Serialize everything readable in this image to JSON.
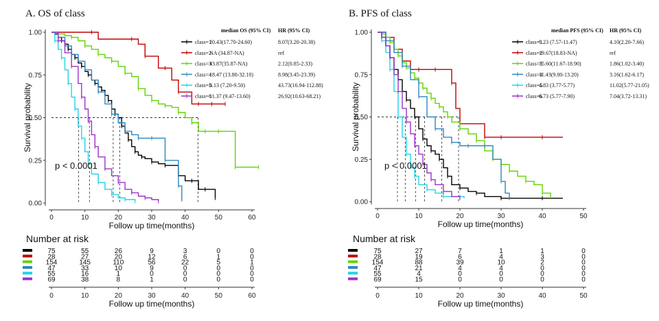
{
  "chart_data": [
    {
      "type": "line",
      "panel_label": "A.",
      "title": "OS of class",
      "xlabel": "Follow up time(months)",
      "ylabel": "Survival probability",
      "xlim": [
        0,
        60
      ],
      "ylim": [
        0,
        1
      ],
      "xticks": [
        0,
        10,
        20,
        30,
        40,
        50,
        60
      ],
      "yticks": [
        "0.00",
        "0.25",
        "0.50",
        "0.75",
        "1.00"
      ],
      "pvalue": "p < 0.0001",
      "legend_header": [
        "median OS (95% CI)",
        "HR (95% CI)"
      ],
      "series": [
        {
          "name": "class=1",
          "color": "#000000",
          "median": "20.43(17.70-24.60)",
          "hr": "8.07(3.20-20.38)",
          "x": [
            0,
            1,
            2,
            3,
            4,
            5,
            6,
            7,
            8,
            9,
            10,
            11,
            12,
            13,
            14,
            15,
            16,
            17,
            18,
            19,
            20,
            21,
            22,
            23,
            24,
            25,
            26,
            27,
            28,
            30,
            32,
            34,
            36,
            38,
            40,
            42,
            44,
            46,
            48,
            49
          ],
          "y": [
            1,
            0.99,
            0.97,
            0.95,
            0.93,
            0.9,
            0.87,
            0.85,
            0.82,
            0.8,
            0.77,
            0.75,
            0.72,
            0.7,
            0.68,
            0.66,
            0.63,
            0.6,
            0.55,
            0.52,
            0.5,
            0.45,
            0.41,
            0.37,
            0.33,
            0.3,
            0.28,
            0.27,
            0.26,
            0.24,
            0.23,
            0.22,
            0.22,
            0.16,
            0.13,
            0.13,
            0.08,
            0.08,
            0.08,
            0.03
          ]
        },
        {
          "name": "class=2",
          "color": "#c00000",
          "median": "NA   (34.87-NA)",
          "hr": "ref",
          "x": [
            0,
            12,
            14,
            24,
            26,
            28,
            32,
            34,
            36,
            38,
            42,
            44,
            46,
            48,
            50,
            52
          ],
          "y": [
            1,
            1,
            0.96,
            0.96,
            0.93,
            0.86,
            0.79,
            0.79,
            0.72,
            0.65,
            0.58,
            0.58,
            0.58,
            0.58,
            0.58,
            0.58
          ]
        },
        {
          "name": "class=3",
          "color": "#5fd400",
          "median": "43.87(35.87-NA)",
          "hr": "2.12(0.85-2.33)",
          "x": [
            0,
            2,
            4,
            6,
            8,
            10,
            12,
            14,
            16,
            18,
            20,
            22,
            24,
            26,
            28,
            30,
            32,
            34,
            36,
            38,
            40,
            42,
            44,
            46,
            48,
            50,
            52,
            55,
            58,
            62
          ],
          "y": [
            1,
            0.99,
            0.98,
            0.97,
            0.95,
            0.92,
            0.9,
            0.87,
            0.85,
            0.83,
            0.8,
            0.76,
            0.74,
            0.67,
            0.63,
            0.6,
            0.58,
            0.57,
            0.56,
            0.53,
            0.5,
            0.47,
            0.42,
            0.42,
            0.42,
            0.42,
            0.42,
            0.21,
            0.21,
            0.21
          ]
        },
        {
          "name": "class=4",
          "color": "#2e86c1",
          "median": "18.47 (13.80-32.10)",
          "hr": "8.98(3.45-23.39)",
          "x": [
            0,
            2,
            4,
            6,
            8,
            10,
            12,
            14,
            16,
            18,
            20,
            22,
            24,
            26,
            28,
            30,
            32,
            34,
            36,
            38,
            39
          ],
          "y": [
            1,
            0.97,
            0.92,
            0.87,
            0.83,
            0.78,
            0.72,
            0.65,
            0.58,
            0.52,
            0.47,
            0.42,
            0.4,
            0.38,
            0.38,
            0.38,
            0.38,
            0.25,
            0.25,
            0.1,
            0.01
          ]
        },
        {
          "name": "class=5",
          "color": "#22d3e6",
          "median": "8.13  (7.20-9.50)",
          "hr": "43.73(16.94-112.88)",
          "x": [
            0,
            1,
            2,
            3,
            4,
            5,
            6,
            7,
            8,
            9,
            10,
            11,
            12,
            14,
            16,
            18,
            20,
            22,
            24,
            25
          ],
          "y": [
            1,
            0.95,
            0.9,
            0.85,
            0.78,
            0.7,
            0.62,
            0.55,
            0.45,
            0.38,
            0.3,
            0.23,
            0.17,
            0.12,
            0.08,
            0.05,
            0.03,
            0.02,
            0.02,
            0.01
          ]
        },
        {
          "name": "class=6",
          "color": "#9b32c8",
          "median": "11.37 (9.47-13.60)",
          "hr": "26.92(10.63-68.21)",
          "x": [
            0,
            2,
            4,
            6,
            8,
            9,
            10,
            11,
            12,
            13,
            14,
            16,
            18,
            20,
            22,
            24,
            26,
            28,
            30,
            32
          ],
          "y": [
            1,
            0.95,
            0.88,
            0.8,
            0.7,
            0.62,
            0.55,
            0.48,
            0.4,
            0.33,
            0.27,
            0.2,
            0.16,
            0.12,
            0.08,
            0.06,
            0.04,
            0.03,
            0.02,
            0.01
          ]
        }
      ],
      "median_lines": [
        8.13,
        11.37,
        18.47,
        20.43,
        43.87
      ]
    },
    {
      "type": "line",
      "panel_label": "B.",
      "title": "PFS of class",
      "xlabel": "Follow up time(months)",
      "ylabel": "Survival probability",
      "xlim": [
        0,
        50
      ],
      "ylim": [
        0,
        1
      ],
      "xticks": [
        0,
        10,
        20,
        30,
        40,
        50
      ],
      "yticks": [
        "0.00",
        "0.25",
        "0.50",
        "0.75",
        "1.00"
      ],
      "pvalue": "p < 0.0001",
      "legend_header": [
        "median PFS (95% CI)",
        "HR (95% CI)"
      ],
      "series": [
        {
          "name": "class=1",
          "color": "#000000",
          "median": "9.23  (7.57-11.47)",
          "hr": "4.10(2.20-7.66)",
          "x": [
            0,
            1,
            2,
            3,
            4,
            5,
            6,
            7,
            8,
            9,
            10,
            11,
            12,
            13,
            14,
            15,
            16,
            17,
            18,
            20,
            22,
            24,
            26,
            30,
            35,
            40,
            45
          ],
          "y": [
            1,
            0.97,
            0.92,
            0.85,
            0.78,
            0.72,
            0.65,
            0.6,
            0.55,
            0.5,
            0.43,
            0.37,
            0.33,
            0.3,
            0.28,
            0.25,
            0.2,
            0.15,
            0.1,
            0.08,
            0.06,
            0.05,
            0.03,
            0.02,
            0.02,
            0.02,
            0.02
          ]
        },
        {
          "name": "class=2",
          "color": "#c00000",
          "median": "19.67(18.83-NA)",
          "hr": "ref",
          "x": [
            0,
            2,
            4,
            6,
            8,
            10,
            12,
            14,
            16,
            18,
            19,
            20,
            24,
            26,
            28,
            30,
            35,
            40,
            45
          ],
          "y": [
            1,
            0.97,
            0.9,
            0.83,
            0.78,
            0.78,
            0.78,
            0.78,
            0.78,
            0.7,
            0.55,
            0.46,
            0.46,
            0.38,
            0.38,
            0.38,
            0.38,
            0.38,
            0.38
          ]
        },
        {
          "name": "class=3",
          "color": "#5fd400",
          "median": "15.60(11.67-18.90)",
          "hr": "1.86(1.02-3.40)",
          "x": [
            0,
            1,
            2,
            3,
            4,
            5,
            6,
            7,
            8,
            9,
            10,
            11,
            12,
            13,
            14,
            15,
            16,
            17,
            18,
            20,
            22,
            24,
            26,
            28,
            30,
            32,
            34,
            36,
            38,
            40,
            42
          ],
          "y": [
            1,
            0.99,
            0.97,
            0.94,
            0.9,
            0.86,
            0.82,
            0.79,
            0.76,
            0.73,
            0.7,
            0.67,
            0.64,
            0.61,
            0.58,
            0.56,
            0.53,
            0.5,
            0.47,
            0.43,
            0.4,
            0.36,
            0.3,
            0.25,
            0.22,
            0.18,
            0.15,
            0.12,
            0.1,
            0.05,
            0.02
          ]
        },
        {
          "name": "class=4",
          "color": "#2e86c1",
          "median": "11.43(9.00-13.20)",
          "hr": "3.16(1.62-6.17)",
          "x": [
            0,
            2,
            4,
            6,
            8,
            10,
            12,
            14,
            16,
            18,
            20,
            22,
            24,
            26,
            28,
            30,
            31,
            32
          ],
          "y": [
            1,
            0.95,
            0.88,
            0.8,
            0.72,
            0.62,
            0.5,
            0.43,
            0.38,
            0.35,
            0.33,
            0.33,
            0.33,
            0.33,
            0.25,
            0.12,
            0.05,
            0.02
          ]
        },
        {
          "name": "class=5",
          "color": "#22d3e6",
          "median": "4.83  (3.77-5.77)",
          "hr": "11.02(5.77-21.05)",
          "x": [
            0,
            1,
            2,
            3,
            4,
            5,
            6,
            7,
            8,
            9,
            10,
            12,
            14,
            16,
            18,
            20,
            21
          ],
          "y": [
            1,
            0.95,
            0.88,
            0.78,
            0.65,
            0.5,
            0.38,
            0.28,
            0.2,
            0.15,
            0.1,
            0.07,
            0.05,
            0.03,
            0.03,
            0.03,
            0.02
          ]
        },
        {
          "name": "class=6",
          "color": "#9b32c8",
          "median": "6.73  (5.77-7.90)",
          "hr": "7.04(3.72-13.31)",
          "x": [
            0,
            1,
            2,
            3,
            4,
            5,
            6,
            7,
            8,
            9,
            10,
            11,
            12,
            13,
            14,
            16,
            18,
            20
          ],
          "y": [
            1,
            0.97,
            0.92,
            0.85,
            0.75,
            0.65,
            0.55,
            0.47,
            0.4,
            0.33,
            0.28,
            0.22,
            0.17,
            0.13,
            0.1,
            0.06,
            0.03,
            0.02
          ]
        }
      ],
      "median_lines": [
        4.83,
        6.73,
        9.23,
        11.43,
        15.6,
        19.67
      ]
    }
  ],
  "risk_tables": [
    {
      "title": "Number at risk",
      "xlabel": "Follow up time(months)",
      "xticks": [
        0,
        10,
        20,
        30,
        40,
        50,
        60
      ],
      "rows": [
        [
          "75",
          "55",
          "26",
          "9",
          "3",
          "0",
          "0"
        ],
        [
          "28",
          "27",
          "20",
          "12",
          "6",
          "1",
          "0"
        ],
        [
          "154",
          "145",
          "110",
          "56",
          "22",
          "5",
          "1"
        ],
        [
          "47",
          "33",
          "10",
          "9",
          "0",
          "0",
          "0"
        ],
        [
          "55",
          "16",
          "1",
          "0",
          "0",
          "0",
          "0"
        ],
        [
          "69",
          "38",
          "8",
          "1",
          "0",
          "0",
          "0"
        ]
      ]
    },
    {
      "title": "Number at risk",
      "xlabel": "Follow up time(months)",
      "xticks": [
        0,
        10,
        20,
        30,
        40,
        50
      ],
      "rows": [
        [
          "75",
          "27",
          "7",
          "1",
          "1",
          "0"
        ],
        [
          "28",
          "19",
          "6",
          "4",
          "3",
          "0"
        ],
        [
          "154",
          "88",
          "39",
          "10",
          "2",
          "0"
        ],
        [
          "47",
          "21",
          "4",
          "4",
          "0",
          "0"
        ],
        [
          "55",
          "4",
          "0",
          "0",
          "0",
          "0"
        ],
        [
          "69",
          "15",
          "0",
          "0",
          "0",
          "0"
        ]
      ]
    }
  ]
}
